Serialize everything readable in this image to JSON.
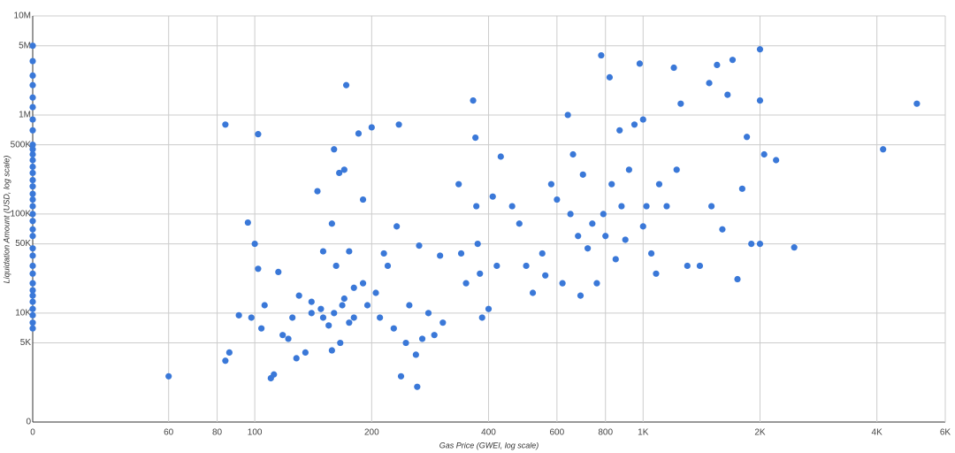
{
  "chart_data": {
    "type": "scatter",
    "x_label": "Gas Price (GWEI, log scale)",
    "y_label": "Liquidation Amount (USD, log scale)",
    "x_scale": "log",
    "y_scale": "log",
    "grid": true,
    "color": "#3a78d8",
    "xlim": [
      0,
      6000
    ],
    "ylim": [
      0,
      10000000
    ],
    "xticks": [
      0,
      60,
      80,
      100,
      200,
      400,
      600,
      800,
      {
        "value": 1000,
        "label": "1K"
      },
      {
        "value": 2000,
        "label": "2K"
      },
      {
        "value": 4000,
        "label": "4K"
      },
      {
        "value": 6000,
        "label": "6K"
      }
    ],
    "yticks": [
      0,
      {
        "value": 5000,
        "label": "5K"
      },
      {
        "value": 10000,
        "label": "10K"
      },
      {
        "value": 50000,
        "label": "50K"
      },
      {
        "value": 100000,
        "label": "100K"
      },
      {
        "value": 500000,
        "label": "500K"
      },
      {
        "value": 1000000,
        "label": "1M"
      },
      {
        "value": 5000000,
        "label": "5M"
      },
      {
        "value": 10000000,
        "label": "10M"
      }
    ],
    "x": [
      0,
      0,
      0,
      0,
      0,
      0,
      0,
      0,
      0,
      0,
      0,
      0,
      0,
      0,
      0,
      0,
      0,
      0,
      0,
      0,
      0,
      0,
      0,
      0,
      0,
      0,
      0,
      0,
      0,
      0,
      0,
      0,
      0,
      0,
      0,
      60,
      84,
      102,
      84,
      86,
      91,
      96,
      100,
      102,
      98,
      104,
      110,
      112,
      106,
      118,
      115,
      122,
      130,
      125,
      135,
      128,
      140,
      145,
      150,
      155,
      158,
      160,
      165,
      162,
      168,
      172,
      170,
      175,
      180,
      166,
      158,
      148,
      190,
      185,
      200,
      205,
      210,
      215,
      220,
      228,
      235,
      232,
      238,
      245,
      250,
      260,
      265,
      262,
      270,
      280,
      290,
      300,
      305,
      335,
      340,
      350,
      365,
      370,
      372,
      375,
      380,
      385,
      400,
      410,
      420,
      430,
      460,
      480,
      500,
      520,
      550,
      560,
      580,
      600,
      620,
      640,
      650,
      660,
      680,
      690,
      700,
      720,
      740,
      760,
      780,
      790,
      800,
      820,
      830,
      850,
      870,
      880,
      900,
      920,
      950,
      980,
      1000,
      1000,
      1020,
      1050,
      1080,
      1100,
      1150,
      1200,
      1220,
      1250,
      1300,
      1400,
      1480,
      1500,
      1550,
      1600,
      1650,
      1700,
      1750,
      1800,
      1850,
      1900,
      2000,
      2000,
      2050,
      2000,
      2200,
      2450,
      4150,
      5070,
      140,
      150,
      160,
      170,
      175,
      180,
      190,
      195
    ],
    "values": [
      5000000,
      3500000,
      2500000,
      2000000,
      1500000,
      1200000,
      900000,
      700000,
      500000,
      450000,
      400000,
      350000,
      300000,
      260000,
      220000,
      190000,
      160000,
      140000,
      120000,
      100000,
      85000,
      70000,
      60000,
      45000,
      38000,
      30000,
      25000,
      20000,
      17000,
      15000,
      13000,
      11000,
      9500,
      8000,
      7000,
      2300,
      800000,
      640000,
      3300,
      4000,
      9500,
      82000,
      50000,
      28000,
      9000,
      7000,
      2200,
      2400,
      12000,
      6000,
      26000,
      5500,
      15000,
      9000,
      4000,
      3500,
      10000,
      170000,
      42000,
      7500,
      80000,
      450000,
      260000,
      30000,
      12000,
      2000000,
      280000,
      42000,
      9000,
      5000,
      4200,
      11000,
      140000,
      650000,
      750000,
      16000,
      9000,
      40000,
      30000,
      7000,
      800000,
      75000,
      2300,
      5000,
      12000,
      3800,
      48000,
      1800,
      5500,
      10000,
      6000,
      38000,
      8000,
      200000,
      40000,
      20000,
      1400000,
      590000,
      120000,
      50000,
      25000,
      9000,
      11000,
      150000,
      30000,
      380000,
      120000,
      80000,
      30000,
      16000,
      40000,
      24000,
      200000,
      140000,
      20000,
      1000000,
      100000,
      400000,
      60000,
      15000,
      250000,
      45000,
      80000,
      20000,
      4000000,
      100000,
      60000,
      2400000,
      200000,
      35000,
      700000,
      120000,
      55000,
      280000,
      800000,
      3300000,
      900000,
      75000,
      120000,
      40000,
      25000,
      200000,
      120000,
      3000000,
      280000,
      1300000,
      30000,
      30000,
      2100000,
      120000,
      3200000,
      70000,
      1600000,
      3600000,
      22000,
      180000,
      600000,
      50000,
      4600000,
      1400000,
      400000,
      50000,
      350000,
      46000,
      450000,
      1300000,
      13000,
      9000,
      10000,
      14000,
      8000,
      18000,
      20000,
      12000
    ]
  }
}
